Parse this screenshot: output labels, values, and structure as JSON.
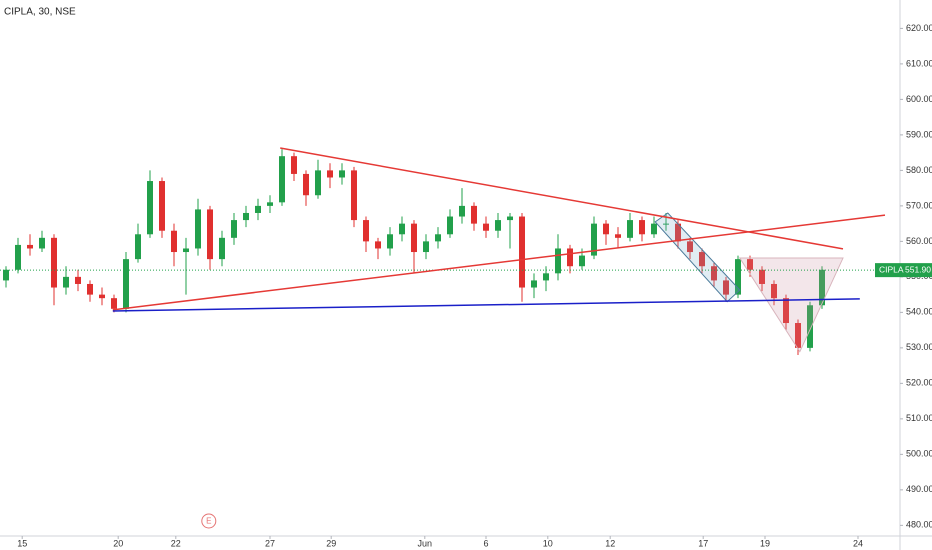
{
  "chart_data": {
    "type": "candlestick",
    "title": "CIPLA, 30, NSE",
    "xlim": [
      0,
      150
    ],
    "ylim": [
      477,
      628
    ],
    "grid": false,
    "up_color": "#22a04b",
    "down_color": "#e0302f",
    "x": [
      1,
      3,
      5,
      7,
      9,
      11,
      13,
      15,
      17,
      19,
      21,
      23,
      25,
      27,
      29,
      31,
      33,
      35,
      37,
      39,
      41,
      43,
      45,
      47,
      49,
      51,
      53,
      55,
      57,
      59,
      61,
      63,
      65,
      67,
      69,
      71,
      73,
      75,
      77,
      79,
      81,
      83,
      85,
      87,
      89,
      91,
      93,
      95,
      97,
      99,
      101,
      103,
      105,
      107,
      109,
      111,
      113,
      115,
      117,
      119,
      121,
      123,
      125,
      127,
      129,
      131,
      133,
      135,
      137
    ],
    "open": [
      549,
      552,
      559,
      558,
      561,
      547,
      550,
      548,
      545,
      544,
      541,
      555,
      562,
      577,
      563,
      557,
      558,
      569,
      555,
      561,
      566,
      568,
      570,
      571,
      584,
      579,
      573,
      580,
      578,
      580,
      566,
      560,
      558,
      562,
      565,
      557,
      560,
      562,
      567,
      570,
      565,
      563,
      566,
      567,
      547,
      549,
      551,
      558,
      553,
      556,
      565,
      562,
      561,
      566,
      562,
      565,
      565,
      560,
      557,
      553,
      549,
      545,
      555,
      552,
      548,
      544,
      537,
      530,
      542
    ],
    "high": [
      553,
      561,
      562,
      563,
      562,
      553,
      552,
      549,
      547,
      545,
      557,
      565,
      580,
      578,
      565,
      561,
      572,
      570,
      563,
      568,
      570,
      572,
      573,
      586,
      585,
      580,
      583,
      582,
      582,
      581,
      567,
      561,
      564,
      567,
      566,
      562,
      564,
      569,
      575,
      571,
      567,
      568,
      568,
      568,
      551,
      553,
      562,
      559,
      558,
      567,
      566,
      564,
      568,
      567,
      567,
      568,
      566,
      561,
      558,
      554,
      550,
      556,
      556,
      553,
      549,
      545,
      538,
      543,
      553
    ],
    "low": [
      547,
      551,
      556,
      557,
      542,
      545,
      546,
      543,
      542,
      540,
      540,
      554,
      561,
      561,
      553,
      545,
      556,
      552,
      553,
      559,
      564,
      566,
      568,
      570,
      577,
      570,
      572,
      575,
      576,
      564,
      557,
      555,
      556,
      560,
      551,
      555,
      558,
      561,
      565,
      563,
      561,
      561,
      558,
      543,
      544,
      546,
      549,
      551,
      552,
      555,
      559,
      558,
      560,
      560,
      561,
      563,
      558,
      555,
      551,
      547,
      543,
      544,
      550,
      546,
      542,
      535,
      528,
      529,
      541
    ],
    "close": [
      552,
      559,
      558,
      561,
      547,
      550,
      548,
      545,
      544,
      541,
      555,
      562,
      577,
      563,
      557,
      558,
      569,
      555,
      561,
      566,
      568,
      570,
      571,
      584,
      579,
      573,
      580,
      578,
      580,
      566,
      560,
      558,
      562,
      565,
      557,
      560,
      562,
      567,
      570,
      565,
      563,
      566,
      567,
      547,
      549,
      551,
      558,
      553,
      556,
      565,
      562,
      561,
      566,
      562,
      565,
      565,
      560,
      557,
      553,
      549,
      545,
      555,
      552,
      548,
      544,
      537,
      530,
      542,
      552
    ],
    "yticks": [
      {
        "value": 480,
        "label": "480.00"
      },
      {
        "value": 490,
        "label": "490.00"
      },
      {
        "value": 500,
        "label": "500.00"
      },
      {
        "value": 510,
        "label": "510.00"
      },
      {
        "value": 520,
        "label": "520.00"
      },
      {
        "value": 530,
        "label": "530.00"
      },
      {
        "value": 540,
        "label": "540.00"
      },
      {
        "value": 550,
        "label": "550.00"
      },
      {
        "value": 560,
        "label": "560.00"
      },
      {
        "value": 570,
        "label": "570.00"
      },
      {
        "value": 580,
        "label": "580.00"
      },
      {
        "value": 590,
        "label": "590.00"
      },
      {
        "value": 600,
        "label": "600.00"
      },
      {
        "value": 610,
        "label": "610.00"
      },
      {
        "value": 620,
        "label": "620.00"
      }
    ],
    "xticks": [
      {
        "value": 3.7,
        "label": "15"
      },
      {
        "value": 19.7,
        "label": "20"
      },
      {
        "value": 29.3,
        "label": "22"
      },
      {
        "value": 45,
        "label": "27"
      },
      {
        "value": 55.2,
        "label": "29"
      },
      {
        "value": 70.8,
        "label": "Jun"
      },
      {
        "value": 81,
        "label": "6"
      },
      {
        "value": 91.3,
        "label": "10"
      },
      {
        "value": 101.7,
        "label": "12"
      },
      {
        "value": 117.2,
        "label": "17"
      },
      {
        "value": 127.5,
        "label": "19"
      },
      {
        "value": 143,
        "label": "24"
      }
    ],
    "last_price": 551.9,
    "last_price_label": "551.90",
    "last_price_symbol": "CIPLA",
    "last_price_color": "#22a04b",
    "trend_lines": [
      {
        "color": "#e53935",
        "x": [
          46.7,
          140.5
        ],
        "y": [
          586.3,
          557.9
        ]
      },
      {
        "color": "#e53935",
        "x": [
          18.8,
          147.5
        ],
        "y": [
          540.7,
          567.4
        ]
      },
      {
        "color": "#1a1fc8",
        "x": [
          18.8,
          143.3
        ],
        "y": [
          540.4,
          543.8
        ]
      }
    ],
    "shapes": [
      {
        "color": "#4a7a9a",
        "fill": "rgba(120,170,200,0.22)",
        "x": [
          109.2,
          111.3,
          123.3,
          121.2
        ],
        "y": [
          565.5,
          568.0,
          546.3,
          543.0
        ]
      },
      {
        "color": "#d8b4bc",
        "fill": "rgba(200,140,160,0.22)",
        "x": [
          123.3,
          140.5,
          133.3
        ],
        "y": [
          555.3,
          555.3,
          528.9
        ]
      }
    ],
    "events": [
      {
        "x": 34.8,
        "label": "E"
      }
    ]
  }
}
